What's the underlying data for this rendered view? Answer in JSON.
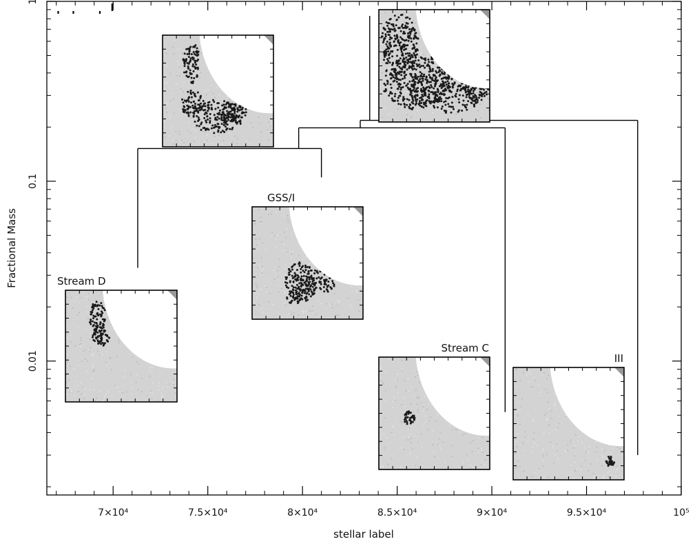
{
  "chart_data": {
    "type": "dendrogram",
    "xlabel": "stellar label",
    "ylabel": "Fractional Mass",
    "xlim": [
      66500,
      100000
    ],
    "ylim": [
      0.0018,
      1.0
    ],
    "yscale": "log",
    "x_ticks": [
      {
        "value": 70000,
        "label": "7×10⁴"
      },
      {
        "value": 75000,
        "label": "7.5×10⁴"
      },
      {
        "value": 80000,
        "label": "8×10⁴"
      },
      {
        "value": 85000,
        "label": "8.5×10⁴"
      },
      {
        "value": 90000,
        "label": "9×10⁴"
      },
      {
        "value": 95000,
        "label": "9.5×10⁴"
      },
      {
        "value": 100000,
        "label": "10⁵"
      }
    ],
    "y_ticks": [
      {
        "value": 1,
        "label": "1"
      },
      {
        "value": 0.1,
        "label": "0.1"
      },
      {
        "value": 0.01,
        "label": "0.01"
      }
    ],
    "top_marks": [
      67100,
      67900,
      69300,
      69950
    ],
    "leaves": [
      {
        "x": 71300,
        "y_low": 0.033,
        "y_high": 0.152
      },
      {
        "x": 81000,
        "y_low": 0.105,
        "y_high": 0.152
      },
      {
        "x": 90700,
        "y_low": 0.0052,
        "y_high": 0.198
      },
      {
        "x": 97700,
        "y_low": 0.003,
        "y_high": 0.218
      },
      {
        "x": 83550,
        "y_low": 0.218,
        "y_high": 0.83
      }
    ],
    "merges": [
      {
        "x1": 71300,
        "x2": 81000,
        "y": 0.152
      },
      {
        "x1": 79800,
        "x2": 90700,
        "y": 0.198
      },
      {
        "x1": 83050,
        "x2": 97700,
        "y": 0.218
      }
    ],
    "insets": [
      {
        "label": "",
        "blob": "large"
      },
      {
        "label": "",
        "blob": "medium"
      },
      {
        "label": "GSS/I",
        "blob": "gss"
      },
      {
        "label": "Stream D",
        "blob": "streamd"
      },
      {
        "label": "Stream C",
        "blob": "streamc"
      },
      {
        "label": "III",
        "blob": "iii"
      }
    ]
  }
}
